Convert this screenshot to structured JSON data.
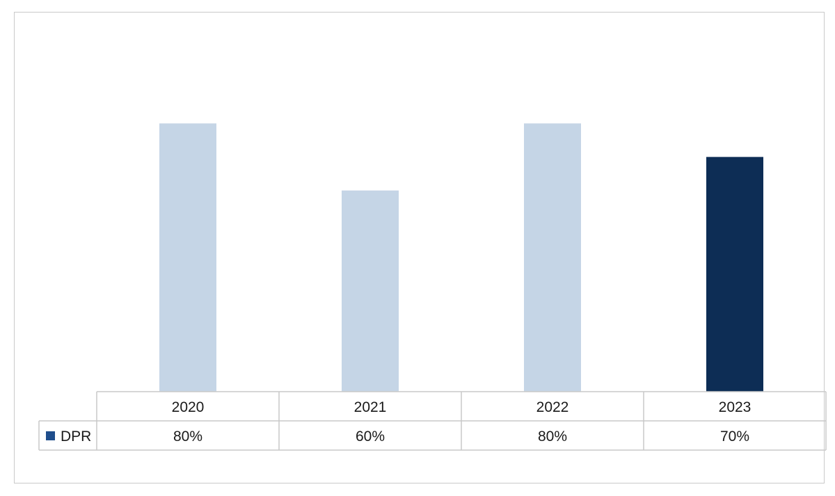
{
  "chart_data": {
    "type": "bar",
    "categories": [
      "2020",
      "2021",
      "2022",
      "2023"
    ],
    "series": [
      {
        "name": "DPR",
        "values": [
          80,
          60,
          80,
          70
        ],
        "labels": [
          "80%",
          "60%",
          "80%",
          "70%"
        ],
        "colors": [
          "#c5d5e6",
          "#c5d5e6",
          "#c5d5e6",
          "#0d2d55"
        ],
        "legend_color": "#1f4e8c"
      }
    ],
    "title": "",
    "xlabel": "",
    "ylabel": "",
    "ylim": [
      0,
      100
    ],
    "grid": false,
    "legend": "data-table",
    "data_table": true
  }
}
